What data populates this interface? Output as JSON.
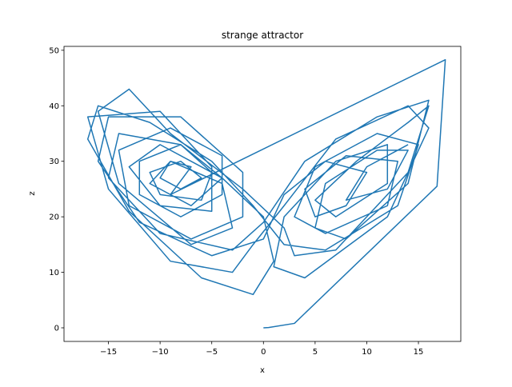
{
  "chart_data": {
    "type": "line",
    "title": "strange attractor",
    "x_label": "x",
    "y_label": "z",
    "color": "#1f77b4",
    "grid": false,
    "xlim": [
      -19.3,
      19.1
    ],
    "ylim": [
      -2.45,
      50.7
    ],
    "xticks": [
      {
        "value": -15,
        "label": "−15"
      },
      {
        "value": -10,
        "label": "−10"
      },
      {
        "value": -5,
        "label": "−5"
      },
      0,
      5,
      10,
      15
    ],
    "yticks": [
      0,
      10,
      20,
      30,
      40,
      50
    ],
    "x": [
      0,
      0.5,
      3,
      16.8,
      17.6,
      -9,
      -7,
      -9,
      -10,
      -8,
      -6,
      -8,
      -11,
      -10,
      -6,
      -5,
      -8,
      -12,
      -12,
      -8,
      -4,
      -4,
      -9,
      -14,
      -13,
      -7,
      -2,
      -2,
      -8,
      -15,
      -16,
      -12,
      -5,
      0,
      2,
      6,
      10,
      8,
      5,
      4,
      8,
      13,
      12,
      6,
      3,
      5,
      11,
      15,
      13,
      6,
      2,
      -1,
      -5,
      -11,
      -16,
      -17,
      -13,
      -6,
      -1,
      1,
      0,
      -4,
      -10,
      -13,
      -10,
      -5,
      -5,
      -10,
      -17,
      -15,
      -9,
      -3,
      -1,
      2,
      7,
      14,
      16,
      12,
      4,
      1,
      2,
      7,
      12,
      12,
      7,
      5,
      9,
      14,
      16,
      14,
      7,
      3,
      2,
      -2,
      -9,
      -13,
      -16,
      -14,
      -7,
      -3,
      -4,
      -9,
      -11,
      -7,
      -4,
      -8,
      -14,
      -15,
      -10,
      -3,
      0,
      4,
      11,
      16,
      14,
      8,
      5,
      6,
      11,
      14,
      12,
      8,
      10,
      14
    ],
    "values": [
      0,
      0.05,
      0.8,
      25.5,
      48.3,
      24,
      29,
      30,
      27,
      25,
      27,
      30,
      28,
      24,
      23,
      28,
      33,
      30,
      24,
      20,
      24,
      31,
      36,
      32,
      22,
      16,
      20,
      28,
      38,
      38,
      30,
      19,
      13,
      16,
      24,
      30,
      28,
      22,
      20,
      25,
      31,
      30,
      22,
      17,
      20,
      29,
      35,
      33,
      22,
      14,
      15,
      22,
      30,
      37,
      40,
      34,
      21,
      9,
      6,
      12,
      20,
      27,
      33,
      29,
      22,
      21,
      29,
      39,
      38,
      25,
      12,
      10,
      15,
      22,
      34,
      40,
      36,
      20,
      9,
      11,
      20,
      30,
      33,
      26,
      20,
      23,
      30,
      37,
      40,
      28,
      14,
      13,
      18,
      25,
      35,
      43,
      39,
      26,
      15,
      18,
      26,
      30,
      26,
      22,
      27,
      33,
      35,
      27,
      17,
      14,
      19,
      30,
      38,
      41,
      26,
      16,
      18,
      26,
      32,
      32,
      25,
      23,
      29,
      33
    ]
  }
}
